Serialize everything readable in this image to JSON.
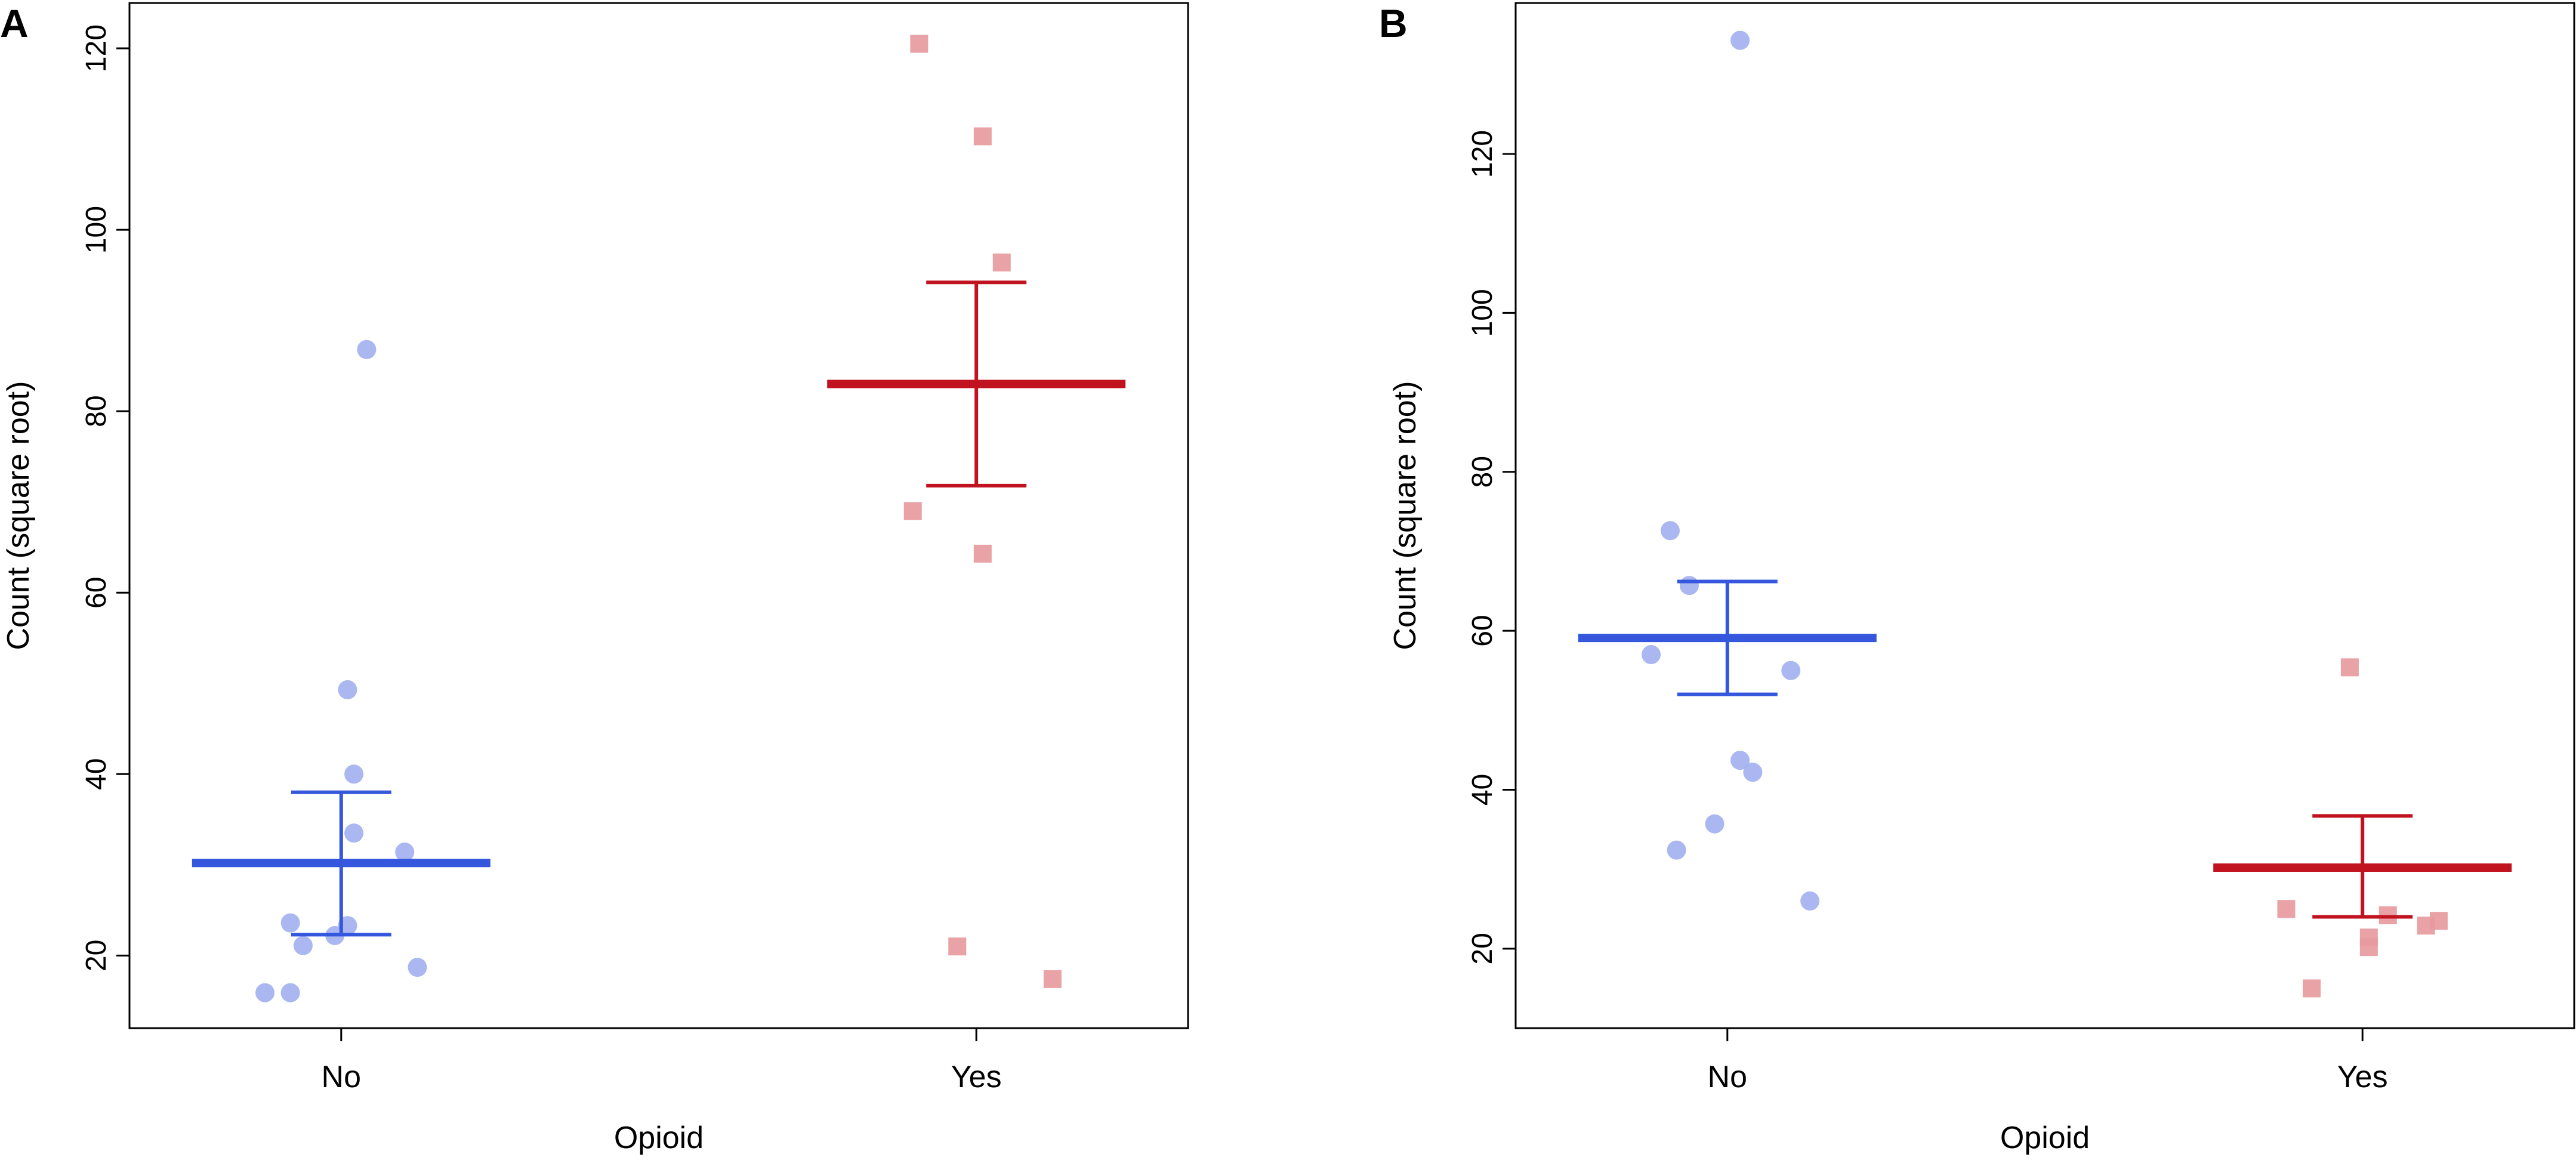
{
  "colors": {
    "no_point": "#a3b1ef",
    "no_line": "#3457dd",
    "yes_point": "#e79a9e",
    "yes_line": "#c1121f",
    "axis": "#000000"
  },
  "chart_data": [
    {
      "panel_label": "A",
      "type": "scatter",
      "title": "",
      "xlabel": "Opioid",
      "ylabel": "Count (square root)",
      "categories": [
        "No",
        "Yes"
      ],
      "ylim": [
        12,
        125
      ],
      "yticks": [
        20,
        40,
        60,
        80,
        100,
        120
      ],
      "ytick_labels": [
        "20",
        "40",
        "60",
        "80",
        "100",
        "120"
      ],
      "series": [
        {
          "name": "No",
          "marker": "circle",
          "mean": 30.2,
          "ci_low": 22.3,
          "ci_high": 38.0,
          "points": [
            {
              "x": 1.04,
              "y": 86.8
            },
            {
              "x": 1.01,
              "y": 49.3
            },
            {
              "x": 1.02,
              "y": 40.0
            },
            {
              "x": 1.02,
              "y": 33.5
            },
            {
              "x": 1.1,
              "y": 31.4
            },
            {
              "x": 0.92,
              "y": 23.6
            },
            {
              "x": 1.01,
              "y": 23.3
            },
            {
              "x": 0.99,
              "y": 22.2
            },
            {
              "x": 0.94,
              "y": 21.1
            },
            {
              "x": 1.12,
              "y": 18.7
            },
            {
              "x": 0.88,
              "y": 15.9
            },
            {
              "x": 0.92,
              "y": 15.9
            }
          ]
        },
        {
          "name": "Yes",
          "marker": "square",
          "mean": 83.0,
          "ci_low": 71.8,
          "ci_high": 94.2,
          "points": [
            {
              "x": 1.91,
              "y": 120.5
            },
            {
              "x": 2.01,
              "y": 110.3
            },
            {
              "x": 2.04,
              "y": 96.4
            },
            {
              "x": 1.9,
              "y": 69.0
            },
            {
              "x": 2.01,
              "y": 64.3
            },
            {
              "x": 1.97,
              "y": 21.0
            },
            {
              "x": 2.12,
              "y": 17.4
            }
          ]
        }
      ]
    },
    {
      "panel_label": "B",
      "type": "scatter",
      "title": "",
      "xlabel": "Opioid",
      "ylabel": "Count (square root)",
      "categories": [
        "No",
        "Yes"
      ],
      "ylim": [
        10,
        139
      ],
      "yticks": [
        20,
        40,
        60,
        80,
        100,
        120
      ],
      "ytick_labels": [
        "20",
        "40",
        "60",
        "80",
        "100",
        "120"
      ],
      "series": [
        {
          "name": "No",
          "marker": "circle",
          "mean": 59.1,
          "ci_low": 52.0,
          "ci_high": 66.2,
          "points": [
            {
              "x": 1.02,
              "y": 134.3
            },
            {
              "x": 0.91,
              "y": 72.6
            },
            {
              "x": 0.94,
              "y": 65.7
            },
            {
              "x": 0.88,
              "y": 57.0
            },
            {
              "x": 1.1,
              "y": 55.0
            },
            {
              "x": 1.02,
              "y": 43.7
            },
            {
              "x": 1.04,
              "y": 42.2
            },
            {
              "x": 0.98,
              "y": 35.7
            },
            {
              "x": 0.92,
              "y": 32.4
            },
            {
              "x": 1.13,
              "y": 26.0
            }
          ]
        },
        {
          "name": "Yes",
          "marker": "square",
          "mean": 30.2,
          "ci_low": 24.0,
          "ci_high": 36.7,
          "points": [
            {
              "x": 1.98,
              "y": 55.4
            },
            {
              "x": 1.88,
              "y": 25.0
            },
            {
              "x": 2.04,
              "y": 24.2
            },
            {
              "x": 2.12,
              "y": 23.5
            },
            {
              "x": 2.1,
              "y": 22.9
            },
            {
              "x": 2.01,
              "y": 21.4
            },
            {
              "x": 2.01,
              "y": 20.2
            },
            {
              "x": 1.92,
              "y": 15.0
            }
          ]
        }
      ]
    }
  ]
}
